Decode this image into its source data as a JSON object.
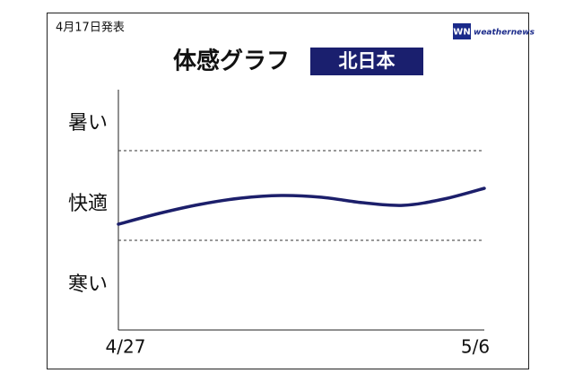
{
  "chart_data": {
    "type": "line",
    "announcement": "4月17日発表",
    "title": "体感グラフ",
    "region": "北日本",
    "brand_mark": "WN",
    "brand": "weathernews",
    "x": [
      "4/27",
      null,
      null,
      null,
      null,
      null,
      null,
      null,
      null,
      "5/6"
    ],
    "values": [
      1.18,
      1.3,
      1.4,
      1.47,
      1.5,
      1.48,
      1.42,
      1.39,
      1.46,
      1.58
    ],
    "color": "#1c1f6b",
    "ylim": [
      0,
      2.7
    ],
    "yticks": [
      {
        "value": 2.3,
        "label": "暑い"
      },
      {
        "value": 1.4,
        "label": "快適"
      },
      {
        "value": 0.5,
        "label": "寒い"
      }
    ],
    "band_edges": [
      1,
      2
    ]
  }
}
